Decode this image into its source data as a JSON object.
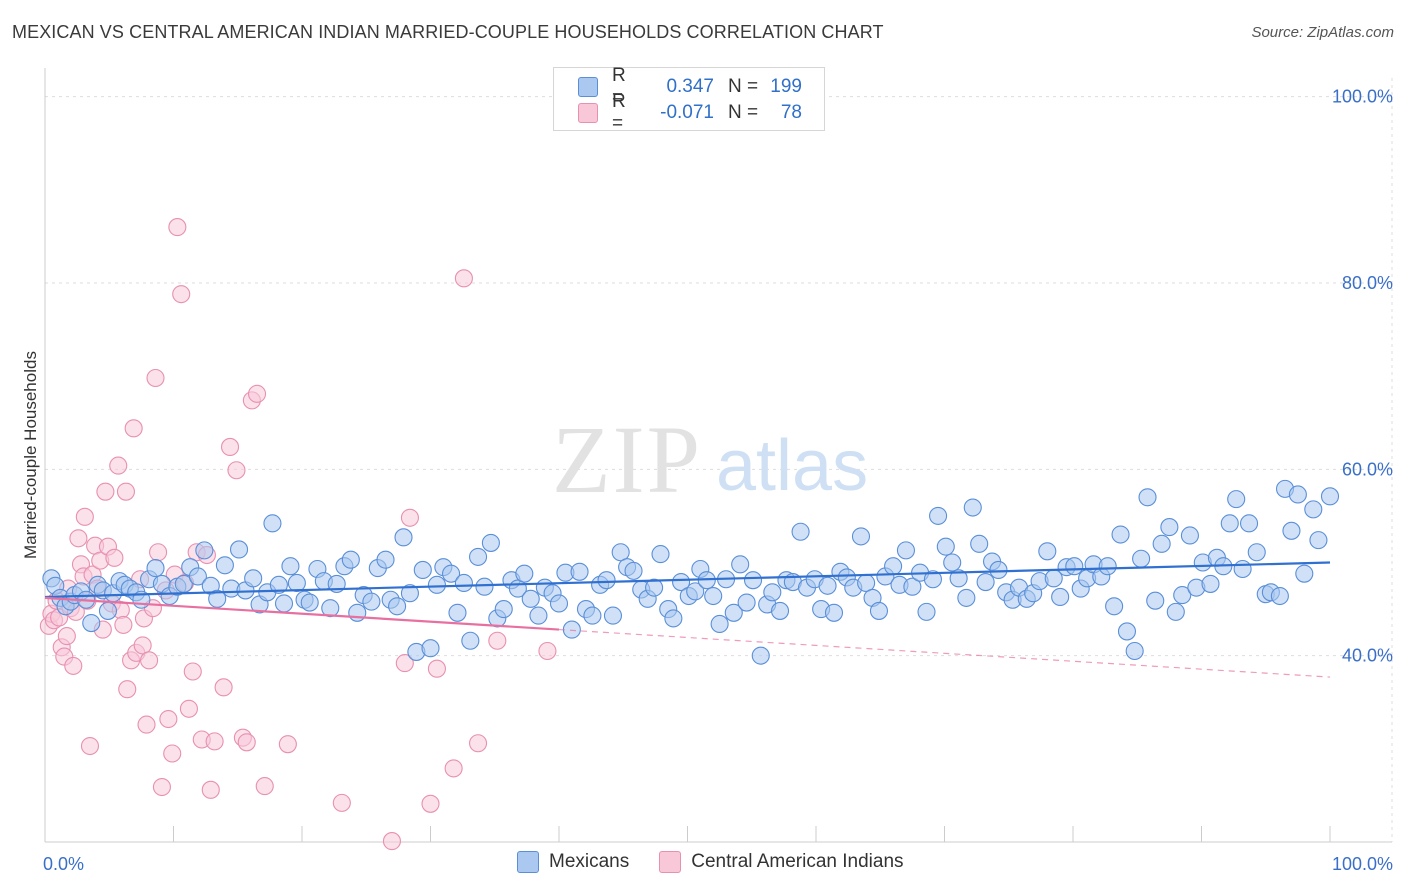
{
  "header": {
    "title": "MEXICAN VS CENTRAL AMERICAN INDIAN MARRIED-COUPLE HOUSEHOLDS CORRELATION CHART",
    "source": "Source: ZipAtlas.com"
  },
  "watermark": {
    "zip": "ZIP",
    "atlas": "atlas"
  },
  "legend": {
    "r_label": "R =",
    "n_label": "N =",
    "rows": [
      {
        "r": "0.347",
        "n": "199",
        "color": "#aac8f0",
        "stroke": "#5a8fd8"
      },
      {
        "r": "-0.071",
        "n": "78",
        "color": "#f8c8d8",
        "stroke": "#e890b0"
      }
    ]
  },
  "bottom_legend": [
    {
      "label": "Mexicans",
      "color": "#aac8f0",
      "stroke": "#5a8fd8"
    },
    {
      "label": "Central American Indians",
      "color": "#f8c8d8",
      "stroke": "#e890b0"
    }
  ],
  "chart_data": {
    "type": "scatter",
    "title": "MEXICAN VS CENTRAL AMERICAN INDIAN MARRIED-COUPLE HOUSEHOLDS CORRELATION CHART",
    "ylabel": "Married-couple Households",
    "xlabel": "",
    "xlim": [
      0,
      100
    ],
    "ylim": [
      20,
      102
    ],
    "x_tick_labels": [
      {
        "x": 0,
        "label": "0.0%"
      },
      {
        "x": 100,
        "label": "100.0%"
      }
    ],
    "y_tick_labels": [
      {
        "y": 40,
        "label": "40.0%"
      },
      {
        "y": 60,
        "label": "60.0%"
      },
      {
        "y": 80,
        "label": "80.0%"
      },
      {
        "y": 100,
        "label": "100.0%"
      }
    ],
    "grid": true,
    "series": [
      {
        "name": "Mexicans",
        "color": "#aac8f0",
        "stroke": "#5a8fd8",
        "trend": {
          "x": [
            0,
            100
          ],
          "y": [
            46.3,
            50.0
          ],
          "color": "#3070d0"
        },
        "points": [
          [
            0.5,
            48.3
          ],
          [
            0.8,
            47.5
          ],
          [
            1.2,
            46.2
          ],
          [
            1.6,
            45.3
          ],
          [
            2.0,
            45.8
          ],
          [
            2.3,
            46.5
          ],
          [
            2.8,
            46.9
          ],
          [
            3.2,
            46.0
          ],
          [
            3.6,
            43.5
          ],
          [
            4.1,
            47.6
          ],
          [
            4.5,
            47.0
          ],
          [
            4.9,
            44.8
          ],
          [
            5.3,
            46.7
          ],
          [
            5.8,
            48.0
          ],
          [
            6.2,
            47.6
          ],
          [
            6.6,
            47.2
          ],
          [
            7.1,
            46.8
          ],
          [
            7.5,
            46.0
          ],
          [
            8.1,
            48.2
          ],
          [
            8.6,
            49.4
          ],
          [
            9.1,
            47.7
          ],
          [
            9.7,
            46.4
          ],
          [
            10.3,
            47.4
          ],
          [
            10.8,
            47.7
          ],
          [
            11.3,
            49.5
          ],
          [
            11.9,
            48.5
          ],
          [
            12.4,
            51.3
          ],
          [
            12.9,
            47.5
          ],
          [
            13.4,
            46.1
          ],
          [
            14.0,
            49.7
          ],
          [
            14.5,
            47.2
          ],
          [
            15.1,
            51.4
          ],
          [
            15.6,
            47.0
          ],
          [
            16.2,
            48.3
          ],
          [
            16.7,
            45.5
          ],
          [
            17.3,
            46.8
          ],
          [
            17.7,
            54.2
          ],
          [
            18.2,
            47.6
          ],
          [
            18.6,
            45.6
          ],
          [
            19.1,
            49.6
          ],
          [
            19.6,
            47.8
          ],
          [
            20.2,
            46.0
          ],
          [
            20.6,
            45.7
          ],
          [
            21.2,
            49.3
          ],
          [
            21.7,
            48.0
          ],
          [
            22.2,
            45.1
          ],
          [
            22.7,
            47.7
          ],
          [
            23.3,
            49.6
          ],
          [
            23.8,
            50.3
          ],
          [
            24.3,
            44.6
          ],
          [
            24.8,
            46.5
          ],
          [
            25.4,
            45.8
          ],
          [
            25.9,
            49.4
          ],
          [
            26.5,
            50.3
          ],
          [
            26.9,
            46.0
          ],
          [
            27.4,
            45.3
          ],
          [
            27.9,
            52.7
          ],
          [
            28.4,
            46.7
          ],
          [
            28.9,
            40.4
          ],
          [
            29.4,
            49.2
          ],
          [
            30.0,
            40.8
          ],
          [
            30.5,
            47.6
          ],
          [
            31.0,
            49.5
          ],
          [
            31.6,
            48.8
          ],
          [
            32.1,
            44.6
          ],
          [
            32.6,
            47.8
          ],
          [
            33.1,
            41.6
          ],
          [
            33.7,
            50.6
          ],
          [
            34.2,
            47.4
          ],
          [
            34.7,
            52.1
          ],
          [
            35.2,
            44.0
          ],
          [
            35.7,
            45.0
          ],
          [
            36.3,
            48.1
          ],
          [
            36.8,
            47.2
          ],
          [
            37.3,
            48.8
          ],
          [
            37.8,
            46.1
          ],
          [
            38.4,
            44.3
          ],
          [
            38.9,
            47.3
          ],
          [
            39.5,
            46.7
          ],
          [
            40.0,
            45.6
          ],
          [
            40.5,
            48.9
          ],
          [
            41.0,
            42.8
          ],
          [
            41.6,
            49.0
          ],
          [
            42.1,
            45.0
          ],
          [
            42.6,
            44.3
          ],
          [
            43.2,
            47.6
          ],
          [
            43.7,
            48.1
          ],
          [
            44.2,
            44.3
          ],
          [
            44.8,
            51.1
          ],
          [
            45.3,
            49.5
          ],
          [
            45.8,
            49.1
          ],
          [
            46.4,
            47.1
          ],
          [
            46.9,
            46.1
          ],
          [
            47.4,
            47.3
          ],
          [
            47.9,
            50.9
          ],
          [
            48.5,
            45.0
          ],
          [
            48.9,
            44.0
          ],
          [
            49.5,
            47.9
          ],
          [
            50.1,
            46.4
          ],
          [
            50.6,
            46.9
          ],
          [
            51.0,
            49.3
          ],
          [
            51.5,
            48.1
          ],
          [
            52.0,
            46.4
          ],
          [
            52.5,
            43.4
          ],
          [
            53.0,
            48.2
          ],
          [
            53.6,
            44.6
          ],
          [
            54.1,
            49.8
          ],
          [
            54.6,
            45.7
          ],
          [
            55.1,
            48.1
          ],
          [
            55.7,
            40.0
          ],
          [
            56.2,
            45.5
          ],
          [
            56.6,
            46.8
          ],
          [
            57.2,
            44.8
          ],
          [
            57.7,
            48.1
          ],
          [
            58.2,
            47.9
          ],
          [
            58.8,
            53.3
          ],
          [
            59.3,
            47.3
          ],
          [
            59.9,
            48.2
          ],
          [
            60.4,
            45.0
          ],
          [
            60.9,
            47.5
          ],
          [
            61.4,
            44.6
          ],
          [
            61.9,
            49.0
          ],
          [
            62.4,
            48.4
          ],
          [
            62.9,
            47.3
          ],
          [
            63.5,
            52.8
          ],
          [
            63.9,
            47.8
          ],
          [
            64.4,
            46.2
          ],
          [
            64.9,
            44.8
          ],
          [
            65.4,
            48.5
          ],
          [
            66.0,
            49.6
          ],
          [
            66.5,
            47.6
          ],
          [
            67.0,
            51.3
          ],
          [
            67.5,
            47.4
          ],
          [
            68.1,
            48.9
          ],
          [
            68.6,
            44.7
          ],
          [
            69.1,
            48.2
          ],
          [
            69.5,
            55.0
          ],
          [
            70.1,
            51.7
          ],
          [
            70.6,
            50.0
          ],
          [
            71.1,
            48.3
          ],
          [
            71.7,
            46.2
          ],
          [
            72.2,
            55.9
          ],
          [
            72.7,
            52.0
          ],
          [
            73.2,
            47.9
          ],
          [
            73.7,
            50.1
          ],
          [
            74.2,
            49.2
          ],
          [
            74.8,
            46.8
          ],
          [
            75.3,
            46.0
          ],
          [
            75.8,
            47.3
          ],
          [
            76.4,
            46.1
          ],
          [
            76.9,
            46.7
          ],
          [
            77.4,
            48.0
          ],
          [
            78.0,
            51.2
          ],
          [
            78.5,
            48.3
          ],
          [
            79.0,
            46.3
          ],
          [
            79.5,
            49.5
          ],
          [
            80.1,
            49.6
          ],
          [
            80.6,
            47.2
          ],
          [
            81.1,
            48.3
          ],
          [
            81.6,
            49.8
          ],
          [
            82.2,
            48.5
          ],
          [
            82.7,
            49.6
          ],
          [
            83.2,
            45.3
          ],
          [
            83.7,
            53.0
          ],
          [
            84.2,
            42.6
          ],
          [
            84.8,
            40.5
          ],
          [
            85.3,
            50.4
          ],
          [
            85.8,
            57.0
          ],
          [
            86.4,
            45.9
          ],
          [
            86.9,
            52.0
          ],
          [
            87.5,
            53.8
          ],
          [
            88.0,
            44.7
          ],
          [
            88.5,
            46.5
          ],
          [
            89.1,
            52.9
          ],
          [
            89.6,
            47.3
          ],
          [
            90.1,
            50.0
          ],
          [
            90.7,
            47.7
          ],
          [
            91.2,
            50.5
          ],
          [
            91.7,
            49.6
          ],
          [
            92.2,
            54.2
          ],
          [
            92.7,
            56.8
          ],
          [
            93.2,
            49.3
          ],
          [
            93.7,
            54.2
          ],
          [
            94.3,
            51.1
          ],
          [
            95.0,
            46.6
          ],
          [
            95.4,
            46.8
          ],
          [
            96.1,
            46.4
          ],
          [
            96.5,
            57.9
          ],
          [
            97.0,
            53.4
          ],
          [
            97.5,
            57.3
          ],
          [
            98.0,
            48.8
          ],
          [
            98.7,
            55.7
          ],
          [
            99.1,
            52.4
          ],
          [
            100.0,
            57.1
          ]
        ]
      },
      {
        "name": "Central American Indians",
        "color": "#f8c8d8",
        "stroke": "#e890b0",
        "trend": {
          "x": [
            0,
            40
          ],
          "y": [
            46.2,
            42.8
          ],
          "dashed_to": [
            100,
            37.7
          ],
          "color": "#e870a0"
        },
        "points": [
          [
            0.3,
            43.2
          ],
          [
            0.5,
            44.5
          ],
          [
            0.7,
            43.8
          ],
          [
            0.9,
            45.9
          ],
          [
            1.1,
            44.1
          ],
          [
            1.3,
            40.9
          ],
          [
            1.5,
            39.9
          ],
          [
            1.7,
            42.1
          ],
          [
            1.8,
            47.2
          ],
          [
            2.0,
            45.1
          ],
          [
            2.2,
            38.9
          ],
          [
            2.4,
            44.7
          ],
          [
            2.6,
            52.6
          ],
          [
            2.8,
            49.8
          ],
          [
            3.0,
            48.5
          ],
          [
            3.1,
            54.9
          ],
          [
            3.3,
            45.9
          ],
          [
            3.5,
            30.3
          ],
          [
            3.7,
            48.7
          ],
          [
            3.9,
            51.8
          ],
          [
            4.1,
            47.2
          ],
          [
            4.3,
            50.2
          ],
          [
            4.5,
            42.8
          ],
          [
            4.7,
            57.6
          ],
          [
            4.9,
            51.7
          ],
          [
            5.2,
            45.6
          ],
          [
            5.4,
            50.5
          ],
          [
            5.7,
            60.4
          ],
          [
            5.9,
            44.9
          ],
          [
            6.1,
            43.3
          ],
          [
            6.3,
            57.6
          ],
          [
            6.4,
            36.4
          ],
          [
            6.7,
            39.5
          ],
          [
            6.9,
            64.4
          ],
          [
            7.1,
            40.3
          ],
          [
            7.4,
            48.2
          ],
          [
            7.6,
            41.1
          ],
          [
            7.7,
            44.0
          ],
          [
            7.9,
            32.6
          ],
          [
            8.1,
            39.5
          ],
          [
            8.4,
            45.1
          ],
          [
            8.6,
            69.8
          ],
          [
            8.8,
            51.1
          ],
          [
            9.1,
            25.9
          ],
          [
            9.4,
            47.0
          ],
          [
            9.6,
            33.2
          ],
          [
            9.9,
            29.5
          ],
          [
            10.1,
            48.7
          ],
          [
            10.3,
            86.0
          ],
          [
            10.6,
            78.8
          ],
          [
            10.9,
            47.8
          ],
          [
            11.2,
            34.3
          ],
          [
            11.5,
            38.3
          ],
          [
            11.8,
            51.1
          ],
          [
            12.2,
            31.0
          ],
          [
            12.6,
            50.8
          ],
          [
            12.9,
            25.6
          ],
          [
            13.2,
            30.8
          ],
          [
            13.9,
            36.6
          ],
          [
            14.4,
            62.4
          ],
          [
            14.9,
            59.9
          ],
          [
            15.4,
            31.2
          ],
          [
            15.7,
            30.7
          ],
          [
            16.1,
            67.4
          ],
          [
            16.5,
            68.1
          ],
          [
            17.1,
            26.0
          ],
          [
            18.9,
            30.5
          ],
          [
            23.1,
            24.2
          ],
          [
            28.0,
            39.2
          ],
          [
            28.4,
            54.8
          ],
          [
            30.0,
            24.1
          ],
          [
            30.5,
            38.6
          ],
          [
            31.8,
            27.9
          ],
          [
            32.6,
            80.5
          ],
          [
            33.7,
            30.6
          ],
          [
            35.2,
            41.6
          ],
          [
            39.1,
            40.5
          ],
          [
            27.0,
            20.1
          ]
        ]
      }
    ]
  }
}
